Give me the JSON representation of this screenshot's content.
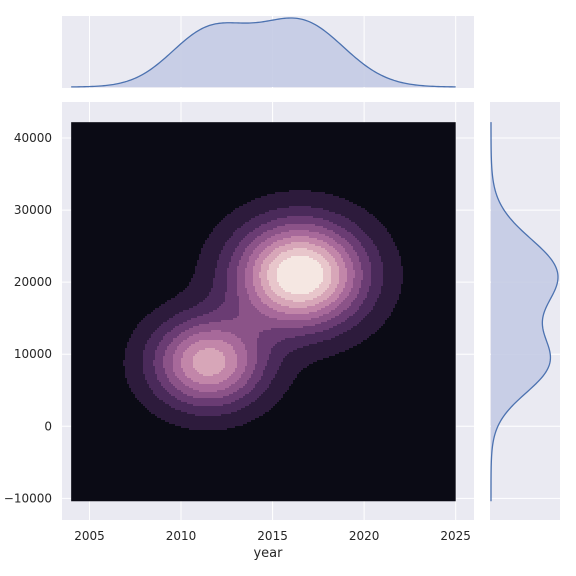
{
  "chart_data": {
    "type": "kde_joint",
    "title": "",
    "xlabel": "year",
    "ylabel": "",
    "xlim": [
      2003.5,
      2026
    ],
    "ylim": [
      -13000,
      45000
    ],
    "x_ticks": [
      2005,
      2010,
      2015,
      2020,
      2025
    ],
    "y_ticks": [
      -10000,
      0,
      10000,
      20000,
      30000,
      40000
    ],
    "x_tick_labels": [
      "2005",
      "2010",
      "2015",
      "2020",
      "2025"
    ],
    "y_tick_labels": [
      "−10000",
      "0",
      "10000",
      "20000",
      "30000",
      "40000"
    ],
    "grid": true,
    "kde_extent": {
      "x": [
        2004,
        2025
      ],
      "y": [
        -10400,
        42200
      ]
    },
    "kde_components": [
      {
        "x": 2011.5,
        "y": 8800,
        "sx": 2.1,
        "sy": 4300,
        "w": 0.42
      },
      {
        "x": 2016.5,
        "y": 21000,
        "sx": 2.4,
        "sy": 5000,
        "w": 0.58
      }
    ],
    "kde_levels": 10,
    "colors": {
      "kde_ramp": [
        "#0b0b15",
        "#2d1b3c",
        "#4a2a5a",
        "#6a3c73",
        "#8b5388",
        "#a7699a",
        "#c286a9",
        "#d7a6b8",
        "#e8c6cb",
        "#f5e7e2"
      ],
      "marginal_line": "#4c72b0",
      "marginal_fill": "#c4cbe4",
      "panel_bg": "#eaeaf2",
      "grid": "#ffffff"
    }
  }
}
